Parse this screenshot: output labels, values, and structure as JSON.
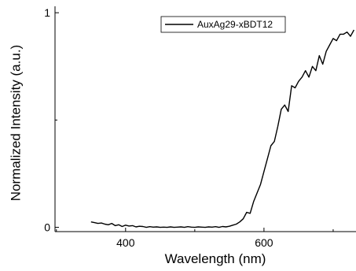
{
  "chart_data": {
    "type": "line",
    "xlabel": "Wavelength (nm)",
    "ylabel": "Normalized Intensity (a.u.)",
    "xlim": [
      298,
      733
    ],
    "ylim": [
      -0.02,
      1.03
    ],
    "x_ticks": [
      400,
      600
    ],
    "x_tick_labels": [
      "400",
      "600"
    ],
    "y_ticks": [
      0,
      1
    ],
    "y_tick_labels": [
      "0",
      "1"
    ],
    "grid": false,
    "legend_position": "top-right",
    "line_color": "#000000",
    "series": [
      {
        "name": "AuxAg29-xBDT12",
        "x": [
          350,
          355,
          360,
          365,
          370,
          375,
          380,
          385,
          390,
          395,
          400,
          405,
          410,
          415,
          420,
          425,
          430,
          435,
          440,
          445,
          450,
          455,
          460,
          465,
          470,
          475,
          480,
          485,
          490,
          495,
          500,
          505,
          510,
          515,
          520,
          525,
          530,
          535,
          540,
          545,
          550,
          555,
          560,
          565,
          570,
          575,
          580,
          585,
          590,
          595,
          600,
          605,
          610,
          615,
          620,
          625,
          630,
          635,
          640,
          645,
          650,
          655,
          660,
          665,
          670,
          675,
          680,
          685,
          690,
          695,
          700,
          705,
          710,
          715,
          720,
          725,
          730
        ],
        "y": [
          0.025,
          0.022,
          0.018,
          0.02,
          0.015,
          0.012,
          0.018,
          0.008,
          0.012,
          0.004,
          0.01,
          0.006,
          0.008,
          0.002,
          0.005,
          0.004,
          0.0,
          0.003,
          0.001,
          0.002,
          0.0,
          0.001,
          0.0,
          0.002,
          0.0,
          0.001,
          0.002,
          0.0,
          0.003,
          0.001,
          0.0,
          0.002,
          0.001,
          0.0,
          0.002,
          0.001,
          0.003,
          0.0,
          0.004,
          0.002,
          0.005,
          0.01,
          0.015,
          0.025,
          0.04,
          0.07,
          0.065,
          0.12,
          0.16,
          0.2,
          0.26,
          0.32,
          0.38,
          0.4,
          0.47,
          0.55,
          0.57,
          0.54,
          0.66,
          0.65,
          0.68,
          0.7,
          0.73,
          0.7,
          0.75,
          0.73,
          0.8,
          0.76,
          0.82,
          0.85,
          0.88,
          0.87,
          0.9,
          0.9,
          0.91,
          0.89,
          0.92
        ]
      }
    ]
  }
}
